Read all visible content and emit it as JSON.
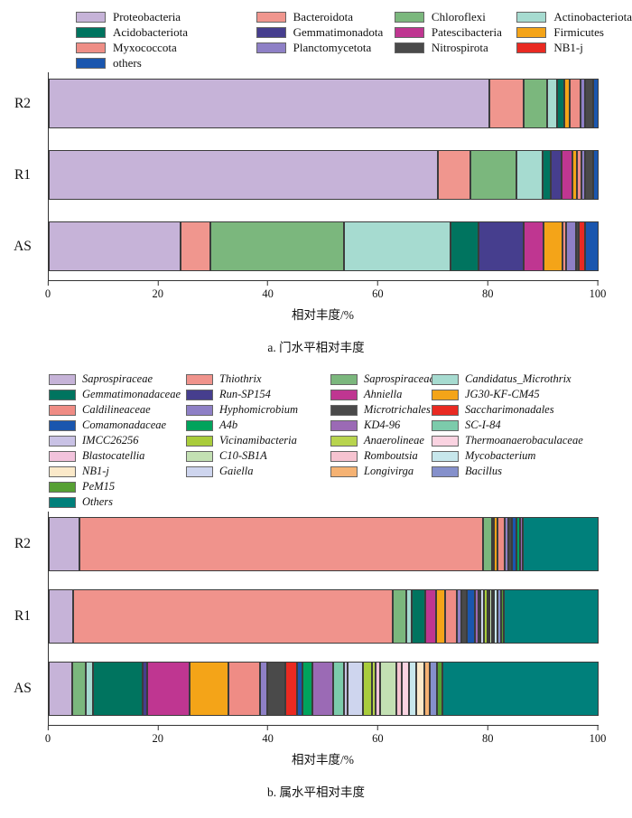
{
  "palette": {
    "Proteobacteria": "#c6b3d8",
    "Acidobacteriota": "#00745f",
    "Myxococcota": "#ee8e86",
    "others": "#1a56ae",
    "Bacteroidota": "#f0968e",
    "Gemmatimonadota": "#463e8e",
    "Planctomycetota": "#8e80c6",
    "Chloroflexi": "#7bb77d",
    "Patescibacteria": "#bf3691",
    "Nitrospirota": "#4a4a4a",
    "Actinobacteriota": "#a6dbd0",
    "Firmicutes": "#f4a418",
    "NB1-j": "#e92a22",
    "Saprospiraceae_f": "#c6b3d8",
    "Gemmatimonadaceae": "#00745f",
    "Caldilineaceae": "#ef8c85",
    "Comamonadaceae": "#1a56ae",
    "IMCC26256": "#c9c2e5",
    "Blastocatellia": "#f2c3dc",
    "NB1-j_g": "#fbe9c9",
    "PeM15": "#56a033",
    "Others": "#00807b",
    "Thiothrix": "#f0938c",
    "Run-SP154": "#463e8e",
    "Hyphomicrobium": "#8e80c6",
    "A4b": "#00a35c",
    "Vicinamibacteria": "#a9cc3b",
    "C10-SB1A": "#c3e0b3",
    "Gaiella": "#ced5ee",
    "Saprospiraceae_g": "#7bb77d",
    "Ahniella": "#bf3691",
    "Microtrichales": "#4a4a4a",
    "KD4-96": "#9b6ab5",
    "Anaerolineae": "#b8d44e",
    "Romboutsia": "#f6c3d0",
    "Longivirga": "#f5b273",
    "Candidatus_Microthrix": "#a6dbd0",
    "JG30-KF-CM45": "#f4a418",
    "Saccharimonadales": "#e92a22",
    "SC-I-84": "#7ccbab",
    "Thermoanaerobaculaceae": "#fad3e1",
    "Mycobacterium": "#c7e7ec",
    "Bacillus": "#8590cb"
  },
  "chart_data": [
    {
      "id": "phylum-level",
      "type": "bar",
      "stacked": true,
      "orientation": "horizontal",
      "title": "a. 门水平相对丰度",
      "xlabel": "相对丰度/%",
      "xlim": [
        0,
        100
      ],
      "xticks": [
        "0",
        "20",
        "40",
        "60",
        "80",
        "100"
      ],
      "categories": [
        "R2",
        "R1",
        "AS"
      ],
      "legend_columns": [
        [
          {
            "key": "Proteobacteria",
            "label": "Proteobacteria"
          },
          {
            "key": "Acidobacteriota",
            "label": "Acidobacteriota"
          },
          {
            "key": "Myxococcota",
            "label": "Myxococcota"
          },
          {
            "key": "others",
            "label": "others"
          }
        ],
        [
          {
            "key": "Bacteroidota",
            "label": "Bacteroidota"
          },
          {
            "key": "Gemmatimonadota",
            "label": "Gemmatimonadota"
          },
          {
            "key": "Planctomycetota",
            "label": "Planctomycetota"
          }
        ],
        [
          {
            "key": "Chloroflexi",
            "label": "Chloroflexi"
          },
          {
            "key": "Patescibacteria",
            "label": "Patescibacteria"
          },
          {
            "key": "Nitrospirota",
            "label": "Nitrospirota"
          }
        ],
        [
          {
            "key": "Actinobacteriota",
            "label": "Actinobacteriota"
          },
          {
            "key": "Firmicutes",
            "label": "Firmicutes"
          },
          {
            "key": "NB1-j",
            "label": "NB1-j"
          }
        ]
      ],
      "series": [
        {
          "key": "Proteobacteria",
          "name": "Proteobacteria",
          "values": [
            80.2,
            70.8,
            23.9
          ]
        },
        {
          "key": "Bacteroidota",
          "name": "Bacteroidota",
          "values": [
            6.1,
            5.9,
            5.5
          ]
        },
        {
          "key": "Chloroflexi",
          "name": "Chloroflexi",
          "values": [
            4.3,
            8.3,
            24.3
          ]
        },
        {
          "key": "Actinobacteriota",
          "name": "Actinobacteriota",
          "values": [
            1.8,
            4.8,
            19.3
          ]
        },
        {
          "key": "Acidobacteriota",
          "name": "Acidobacteriota",
          "values": [
            1.3,
            1.5,
            5.1
          ]
        },
        {
          "key": "Gemmatimonadota",
          "name": "Gemmatimonadota",
          "values": [
            0,
            2.0,
            8.2
          ]
        },
        {
          "key": "Patescibacteria",
          "name": "Patescibacteria",
          "values": [
            0,
            2.0,
            3.7
          ]
        },
        {
          "key": "Firmicutes",
          "name": "Firmicutes",
          "values": [
            1.1,
            0.8,
            3.5
          ]
        },
        {
          "key": "Myxococcota",
          "name": "Myxococcota",
          "values": [
            2.0,
            0.8,
            0.6
          ]
        },
        {
          "key": "Planctomycetota",
          "name": "Planctomycetota",
          "values": [
            0.8,
            0.7,
            1.8
          ]
        },
        {
          "key": "Nitrospirota",
          "name": "Nitrospirota",
          "values": [
            1.5,
            1.5,
            0.5
          ]
        },
        {
          "key": "NB1-j",
          "name": "NB1-j",
          "values": [
            0,
            0,
            1.1
          ]
        },
        {
          "key": "others",
          "name": "others",
          "values": [
            0.9,
            0.9,
            2.5
          ]
        }
      ]
    },
    {
      "id": "genus-level",
      "type": "bar",
      "stacked": true,
      "orientation": "horizontal",
      "title": "b. 属水平相对丰度",
      "xlabel": "相对丰度/%",
      "xlim": [
        0,
        100
      ],
      "xticks": [
        "0",
        "20",
        "40",
        "60",
        "80",
        "100"
      ],
      "categories": [
        "R2",
        "R1",
        "AS"
      ],
      "legend_columns": [
        [
          {
            "key": "Saprospiraceae_f",
            "label": "Saprospiraceae"
          },
          {
            "key": "Gemmatimonadaceae",
            "label": "Gemmatimonadaceae"
          },
          {
            "key": "Caldilineaceae",
            "label": "Caldilineaceae"
          },
          {
            "key": "Comamonadaceae",
            "label": "Comamonadaceae"
          },
          {
            "key": "IMCC26256",
            "label": "IMCC26256"
          },
          {
            "key": "Blastocatellia",
            "label": "Blastocatellia"
          },
          {
            "key": "NB1-j_g",
            "label": "NB1-j"
          },
          {
            "key": "PeM15",
            "label": "PeM15"
          },
          {
            "key": "Others",
            "label": "Others"
          }
        ],
        [
          {
            "key": "Thiothrix",
            "label": "Thiothrix"
          },
          {
            "key": "Run-SP154",
            "label": "Run-SP154"
          },
          {
            "key": "Hyphomicrobium",
            "label": "Hyphomicrobium"
          },
          {
            "key": "A4b",
            "label": "A4b"
          },
          {
            "key": "Vicinamibacteria",
            "label": "Vicinamibacteria"
          },
          {
            "key": "C10-SB1A",
            "label": "C10-SB1A"
          },
          {
            "key": "Gaiella",
            "label": "Gaiella"
          }
        ],
        [
          {
            "key": "Saprospiraceae_g",
            "label": "Saprospiraceae"
          },
          {
            "key": "Ahniella",
            "label": "Ahniella"
          },
          {
            "key": "Microtrichales",
            "label": "Microtrichales"
          },
          {
            "key": "KD4-96",
            "label": "KD4-96"
          },
          {
            "key": "Anaerolineae",
            "label": "Anaerolineae"
          },
          {
            "key": "Romboutsia",
            "label": "Romboutsia"
          },
          {
            "key": "Longivirga",
            "label": "Longivirga"
          }
        ],
        [
          {
            "key": "Candidatus_Microthrix",
            "label": "Candidatus_Microthrix"
          },
          {
            "key": "JG30-KF-CM45",
            "label": "JG30-KF-CM45"
          },
          {
            "key": "Saccharimonadales",
            "label": "Saccharimonadales"
          },
          {
            "key": "SC-I-84",
            "label": "SC-I-84"
          },
          {
            "key": "Thermoanaerobaculaceae",
            "label": "Thermoanaerobaculaceae"
          },
          {
            "key": "Mycobacterium",
            "label": "Mycobacterium"
          },
          {
            "key": "Bacillus",
            "label": "Bacillus"
          }
        ]
      ],
      "series": [
        {
          "key": "Saprospiraceae_f",
          "name": "Saprospiraceae",
          "values": [
            5.6,
            4.5,
            4.3
          ]
        },
        {
          "key": "Thiothrix",
          "name": "Thiothrix",
          "values": [
            73.4,
            58.1,
            0
          ]
        },
        {
          "key": "Saprospiraceae_g",
          "name": "Saprospiraceae",
          "values": [
            1.6,
            2.5,
            2.4
          ]
        },
        {
          "key": "Candidatus_Microthrix",
          "name": "Candidatus_Microthrix",
          "values": [
            0.4,
            0.9,
            1.4
          ]
        },
        {
          "key": "Gemmatimonadaceae",
          "name": "Gemmatimonadaceae",
          "values": [
            0,
            2.5,
            9.0
          ]
        },
        {
          "key": "Run-SP154",
          "name": "Run-SP154",
          "values": [
            0,
            0,
            0.8
          ]
        },
        {
          "key": "Ahniella",
          "name": "Ahniella",
          "values": [
            0,
            1.9,
            7.8
          ]
        },
        {
          "key": "JG30-KF-CM45",
          "name": "JG30-KF-CM45",
          "values": [
            0.6,
            1.7,
            7.0
          ]
        },
        {
          "key": "Caldilineaceae",
          "name": "Caldilineaceae",
          "values": [
            1.4,
            2.1,
            5.8
          ]
        },
        {
          "key": "Hyphomicrobium",
          "name": "Hyphomicrobium",
          "values": [
            0.6,
            0.8,
            1.3
          ]
        },
        {
          "key": "Microtrichales",
          "name": "Microtrichales",
          "values": [
            0.6,
            1.1,
            3.3
          ]
        },
        {
          "key": "Saccharimonadales",
          "name": "Saccharimonadales",
          "values": [
            0,
            0,
            2.0
          ]
        },
        {
          "key": "Comamonadaceae",
          "name": "Comamonadaceae",
          "values": [
            0.8,
            1.5,
            1.0
          ]
        },
        {
          "key": "A4b",
          "name": "A4b",
          "values": [
            0.7,
            0,
            1.9
          ]
        },
        {
          "key": "KD4-96",
          "name": "KD4-96",
          "values": [
            0.6,
            0.5,
            3.8
          ]
        },
        {
          "key": "SC-I-84",
          "name": "SC-I-84",
          "values": [
            0,
            0,
            1.9
          ]
        },
        {
          "key": "IMCC26256",
          "name": "IMCC26256",
          "values": [
            0,
            0.4,
            0.6
          ]
        },
        {
          "key": "Gaiella",
          "name": "Gaiella",
          "values": [
            0,
            0.6,
            2.8
          ]
        },
        {
          "key": "Vicinamibacteria",
          "name": "Vicinamibacteria",
          "values": [
            0,
            0.7,
            1.7
          ]
        },
        {
          "key": "Anaerolineae",
          "name": "Anaerolineae",
          "values": [
            0,
            0.4,
            0.6
          ]
        },
        {
          "key": "Blastocatellia",
          "name": "Blastocatellia",
          "values": [
            0,
            0,
            0.9
          ]
        },
        {
          "key": "C10-SB1A",
          "name": "C10-SB1A",
          "values": [
            0,
            0.4,
            3.0
          ]
        },
        {
          "key": "Romboutsia",
          "name": "Romboutsia",
          "values": [
            0,
            0,
            1.0
          ]
        },
        {
          "key": "Thermoanaerobaculaceae",
          "name": "Thermoanaerobaculaceae",
          "values": [
            0,
            0.4,
            1.2
          ]
        },
        {
          "key": "Mycobacterium",
          "name": "Mycobacterium",
          "values": [
            0,
            0.6,
            1.4
          ]
        },
        {
          "key": "NB1-j_g",
          "name": "NB1-j",
          "values": [
            0,
            0,
            1.5
          ]
        },
        {
          "key": "Longivirga",
          "name": "Longivirga",
          "values": [
            0,
            0,
            1.0
          ]
        },
        {
          "key": "Bacillus",
          "name": "Bacillus",
          "values": [
            0,
            0.7,
            1.3
          ]
        },
        {
          "key": "PeM15",
          "name": "PeM15",
          "values": [
            0,
            0.5,
            1.0
          ]
        },
        {
          "key": "Others",
          "name": "Others",
          "values": [
            13.7,
            17.2,
            28.3
          ]
        }
      ]
    }
  ]
}
